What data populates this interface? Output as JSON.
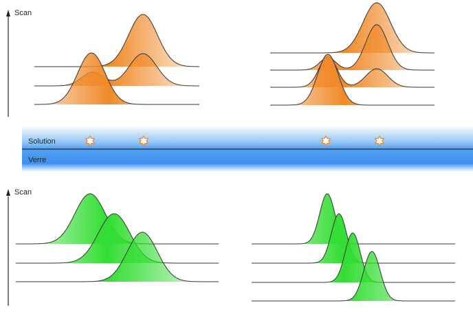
{
  "labels": {
    "scan_top": "Scan",
    "scan_bottom": "Scan",
    "solution": "Solution",
    "glass": "Verre"
  },
  "colors": {
    "orange": "#f08a2a",
    "green": "#33dd33",
    "band_top": "#ffffff",
    "band_mid": "#8ec4f5",
    "band_bottom": "#3d8ef0",
    "star": "#f08a2a",
    "line": "#333333"
  },
  "icons": {
    "particle": "star-outline-icon"
  }
}
